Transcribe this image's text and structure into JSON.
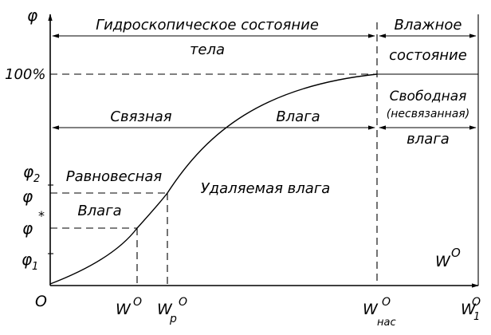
{
  "axes": {
    "y_label": "φ",
    "origin": "O",
    "x_label": "W",
    "x_label_sub": "1",
    "x_label_sup": "O",
    "w0_label": "W",
    "w0_sup": "O"
  },
  "y_ticks": {
    "full": "100%",
    "phi2": "φ",
    "phi2_sub": "2",
    "phi": "φ",
    "phi_star": "φ",
    "phi_star_mark": "*",
    "phi1": "φ",
    "phi1_sub": "1"
  },
  "x_ticks": {
    "w0": "W",
    "w0_sup": "O",
    "wp": "W",
    "wp_sub": "p",
    "wp_sup": "O",
    "wnas": "W",
    "wnas_sub": "нас",
    "wnas_sup": "O"
  },
  "regions": {
    "hygro_line1": "Гидроскопическое состояние",
    "hygro_line2": "тела",
    "wet_line1": "Влажное",
    "wet_line2": "состояние",
    "bound": "Связная",
    "moisture": "Влага",
    "free_line1": "Свободная",
    "free_line2": "(несвязанная)",
    "free_line3": "влага",
    "equilibrium_line1": "Равновесная",
    "equilibrium_line2": "Влага",
    "removable": "Удаляемая влага"
  }
}
